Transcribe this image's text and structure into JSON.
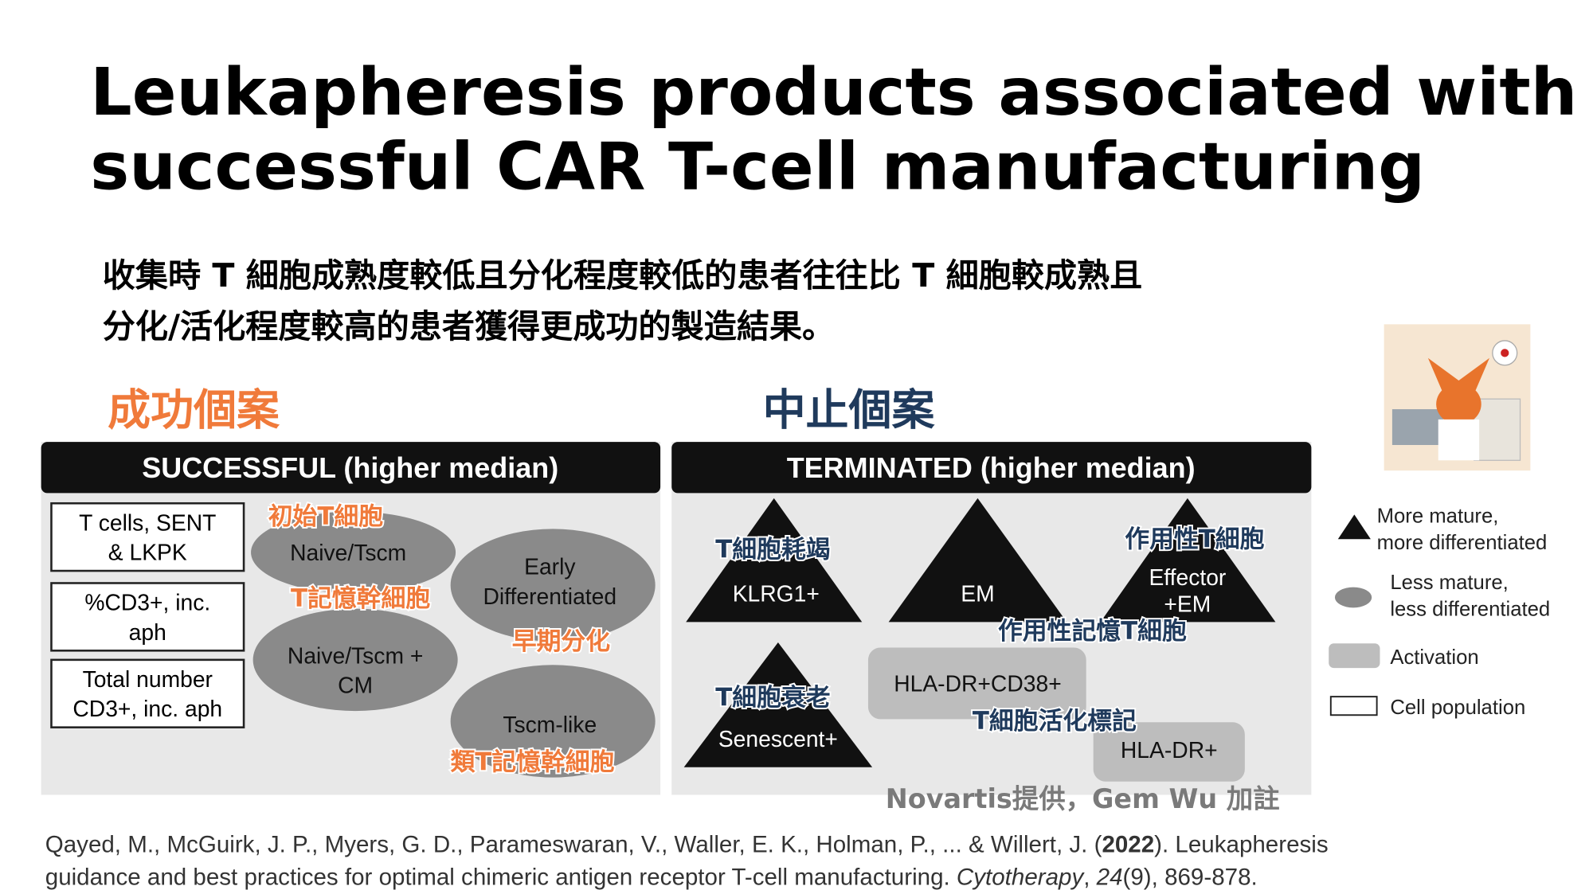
{
  "title": {
    "line1": "Leukapheresis products associated with",
    "line2": "successful CAR T-cell manufacturing"
  },
  "subtitle": {
    "line1": "收集時 T 細胞成熟度較低且分化程度較低的患者往往比 T 細胞較成熟且",
    "line2": "分化/活化程度較高的患者獲得更成功的製造結果。"
  },
  "left": {
    "label": "成功個案",
    "header": "SUCCESSFUL (higher median)",
    "boxes": [
      [
        "T cells, SENT",
        "& LKPK"
      ],
      [
        "%CD3+, inc.",
        "aph"
      ],
      [
        "Total number",
        "CD3+, inc. aph"
      ]
    ],
    "ellipses": [
      [
        "Naive/Tscm"
      ],
      [
        "Naive/Tscm +",
        "CM"
      ],
      [
        "Early",
        "Differentiated"
      ],
      [
        "Tscm-like"
      ]
    ],
    "notes": [
      "初始T細胞",
      "T記憶幹細胞",
      "早期分化",
      "類T記憶幹細胞"
    ]
  },
  "right": {
    "label": "中止個案",
    "header": "TERMINATED (higher median)",
    "triangles": [
      [
        "KLRG1+"
      ],
      [
        "EM"
      ],
      [
        "Effector",
        "+EM"
      ],
      [
        "Senescent+"
      ]
    ],
    "activation": [
      "HLA-DR+CD38+",
      "HLA-DR+"
    ],
    "notes": [
      "T細胞耗竭",
      "作用性T細胞",
      "作用性記憶T細胞",
      "T細胞衰老",
      "T細胞活化標記"
    ]
  },
  "legend": [
    [
      "More mature,",
      "more differentiated"
    ],
    [
      "Less mature,",
      "less differentiated"
    ],
    [
      "Activation"
    ],
    [
      "Cell population"
    ]
  ],
  "credit": "Novartis提供，Gem Wu 加註",
  "citation": {
    "a": "Qayed, M., McGuirk, J. P., Myers, G. D., Parameswaran, V., Waller, E. K., Holman, P., ... & Willert, J. (",
    "year": "2022",
    "b": "). Leukapheresis",
    "c": "guidance and best practices for optimal chimeric antigen receptor T-cell manufacturing. ",
    "journal": "Cytotherapy",
    "d": ", ",
    "volume": "24",
    "e": "(9), 869-878."
  }
}
